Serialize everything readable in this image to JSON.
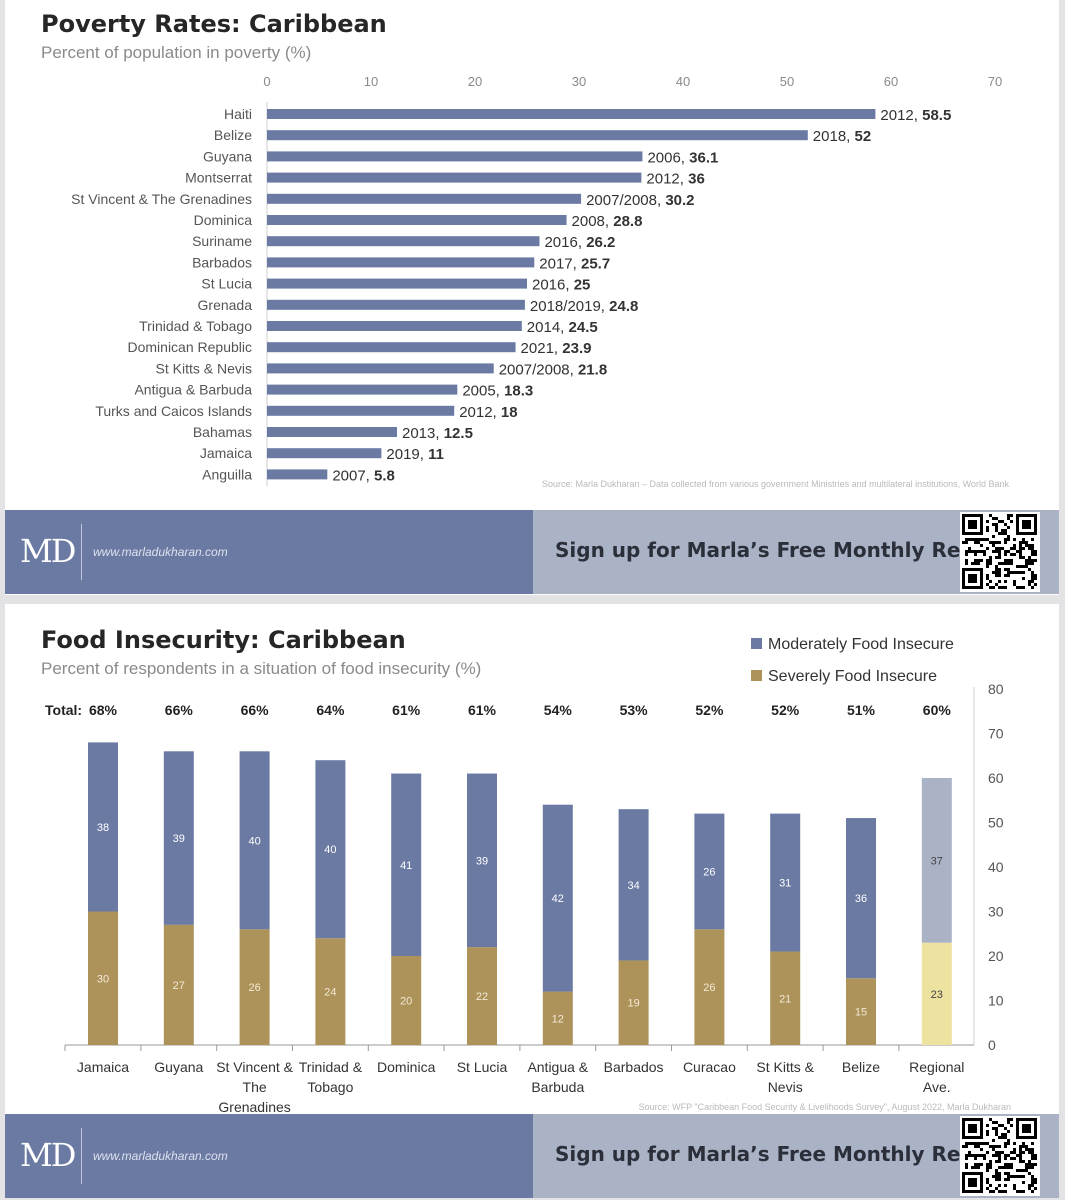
{
  "poverty": {
    "title": "Poverty Rates: Caribbean",
    "subtitle": "Percent of population in poverty (%)",
    "source": "Source: Marla Dukharan – Data collected from various government Ministries and multilateral institutions, World Bank"
  },
  "food": {
    "title": "Food Insecurity: Caribbean",
    "subtitle": "Percent of respondents in a situation of food insecurity (%)",
    "total_label": "Total:",
    "source": "Source: WFP \"Caribbean Food Security & Livelihoods Survey\", August 2022, Marla Dukharan"
  },
  "footer": {
    "logo": "MD",
    "website": "www.marladukharan.com",
    "cta": "Sign up for Marla’s Free Monthly Report"
  },
  "colors": {
    "bar_blue": "#6b7aa3",
    "bar_gold": "#ad9259",
    "regional_blue": "#aab3c6",
    "regional_gold": "#ede2a0",
    "footer_left": "#6b7aa3",
    "footer_right": "#aab3c6"
  },
  "chart_data": [
    {
      "type": "bar",
      "orientation": "horizontal",
      "title": "Poverty Rates: Caribbean",
      "subtitle": "Percent of population in poverty (%)",
      "xlim": [
        0,
        70
      ],
      "xticks": [
        0,
        10,
        20,
        30,
        40,
        50,
        60,
        70
      ],
      "axis_position": "top",
      "categories": [
        "Haiti",
        "Belize",
        "Guyana",
        "Montserrat",
        "St Vincent & The Grenadines",
        "Dominica",
        "Suriname",
        "Barbados",
        "St Lucia",
        "Grenada",
        "Trinidad & Tobago",
        "Dominican Republic",
        "St Kitts & Nevis",
        "Antigua & Barbuda",
        "Turks and Caicos Islands",
        "Bahamas",
        "Jamaica",
        "Anguilla"
      ],
      "years": [
        "2012",
        "2018",
        "2006",
        "2012",
        "2007/2008",
        "2008",
        "2016",
        "2017",
        "2016",
        "2018/2019",
        "2014",
        "2021",
        "2007/2008",
        "2005",
        "2012",
        "2013",
        "2019",
        "2007"
      ],
      "values": [
        58.5,
        52,
        36.1,
        36,
        30.2,
        28.8,
        26.2,
        25.7,
        25,
        24.8,
        24.5,
        23.9,
        21.8,
        18.3,
        18,
        12.5,
        11,
        5.8
      ],
      "value_labels": [
        "58.5",
        "52",
        "36.1",
        "36",
        "30.2",
        "28.8",
        "26.2",
        "25.7",
        "25",
        "24.8",
        "24.5",
        "23.9",
        "21.8",
        "18.3",
        "18",
        "12.5",
        "11",
        "5.8"
      ]
    },
    {
      "type": "bar",
      "stacked": true,
      "title": "Food Insecurity: Caribbean",
      "subtitle": "Percent of respondents in a situation of food insecurity (%)",
      "categories": [
        [
          "Jamaica"
        ],
        [
          "Guyana"
        ],
        [
          "St Vincent &",
          "The",
          "Grenadines"
        ],
        [
          "Trinidad &",
          "Tobago"
        ],
        [
          "Dominica"
        ],
        [
          "St Lucia"
        ],
        [
          "Antigua &",
          "Barbuda"
        ],
        [
          "Barbados"
        ],
        [
          "Curacao"
        ],
        [
          "St Kitts &",
          "Nevis"
        ],
        [
          "Belize"
        ],
        [
          "Regional",
          "Ave."
        ]
      ],
      "series": [
        {
          "name": "Severely Food Insecure",
          "values": [
            30,
            27,
            26,
            24,
            20,
            22,
            12,
            19,
            26,
            21,
            15,
            23
          ]
        },
        {
          "name": "Moderately Food Insecure",
          "values": [
            38,
            39,
            40,
            40,
            41,
            39,
            42,
            34,
            26,
            31,
            36,
            37
          ]
        }
      ],
      "totals": [
        "68%",
        "66%",
        "66%",
        "64%",
        "61%",
        "61%",
        "54%",
        "53%",
        "52%",
        "52%",
        "51%",
        "60%"
      ],
      "ylim": [
        0,
        80
      ],
      "yticks": [
        0,
        10,
        20,
        30,
        40,
        50,
        60,
        70,
        80
      ],
      "y_axis_position": "right",
      "legend": "top-right",
      "highlight_last_category": true
    }
  ]
}
